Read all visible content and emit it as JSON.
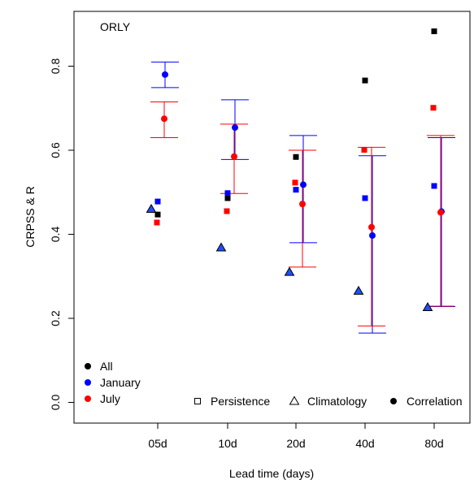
{
  "chart_data": {
    "type": "scatter",
    "title": "ORLY",
    "xlabel": "Lead time (days)",
    "ylabel": "CRPSS & R",
    "categories": [
      "05d",
      "10d",
      "20d",
      "40d",
      "80d"
    ],
    "ylim": [
      -0.05,
      0.93
    ],
    "yticks": [
      0.0,
      0.2,
      0.4,
      0.6,
      0.8
    ],
    "ytick_labels": [
      "0.0",
      "0.2",
      "0.4",
      "0.6",
      "0.8"
    ],
    "grid": false,
    "colors": {
      "All": "#000000",
      "January": "#0000ff",
      "July": "#ff0000",
      "triangle_fill": "#1f4fff"
    },
    "legend_groups": [
      {
        "label": "All",
        "color": "#000000"
      },
      {
        "label": "January",
        "color": "#0000ff"
      },
      {
        "label": "July",
        "color": "#ff0000"
      }
    ],
    "legend_shapes": [
      {
        "label": "Persistence",
        "shape": "open-square"
      },
      {
        "label": "Climatology",
        "shape": "open-triangle"
      },
      {
        "label": "Correlation",
        "shape": "filled-circle"
      }
    ],
    "persistence": [
      {
        "name": "All",
        "values": [
          0.447,
          0.486,
          0.584,
          0.766,
          0.883
        ]
      },
      {
        "name": "January",
        "values": [
          0.478,
          0.498,
          0.506,
          0.486,
          0.515
        ]
      },
      {
        "name": "July",
        "values": [
          0.428,
          0.455,
          0.523,
          0.601,
          0.701
        ]
      }
    ],
    "climatology": [
      0.46,
      0.368,
      0.31,
      0.265,
      0.226
    ],
    "correlation": [
      {
        "name": "January",
        "values": [
          0.78,
          0.654,
          0.518,
          0.397,
          0.454
        ]
      },
      {
        "name": "July",
        "values": [
          0.675,
          0.585,
          0.472,
          0.417,
          0.452
        ]
      }
    ],
    "intervals": [
      {
        "name": "January",
        "lower": [
          0.749,
          0.578,
          0.38,
          0.165,
          0.228
        ],
        "upper": [
          0.81,
          0.72,
          0.635,
          0.587,
          0.63
        ]
      },
      {
        "name": "July",
        "lower": [
          0.63,
          0.497,
          0.322,
          0.182,
          0.229
        ],
        "upper": [
          0.715,
          0.662,
          0.6,
          0.607,
          0.635
        ]
      }
    ]
  }
}
